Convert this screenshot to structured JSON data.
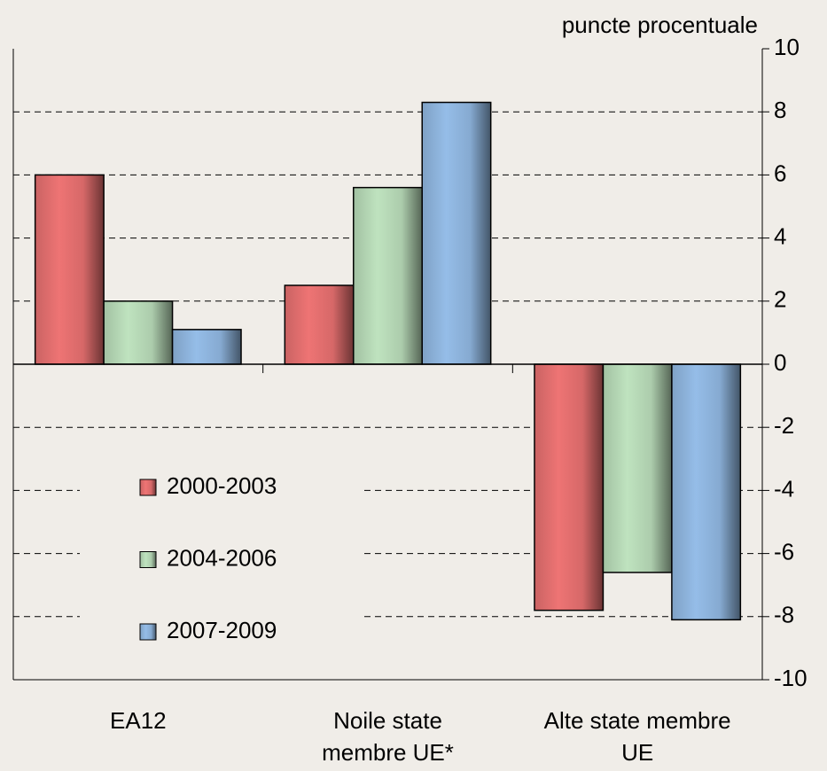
{
  "chart_data": {
    "type": "bar",
    "y_axis_label": "puncte procentuale",
    "categories": [
      "EA12",
      "Noile state membre UE*",
      "Alte state membre UE"
    ],
    "series": [
      {
        "name": "2000-2003",
        "color": "#ee7474",
        "values": [
          6.0,
          2.5,
          -7.8
        ]
      },
      {
        "name": "2004-2006",
        "color": "#bfe3bf",
        "values": [
          2.0,
          5.6,
          -6.6
        ]
      },
      {
        "name": "2007-2009",
        "color": "#95bde8",
        "values": [
          1.1,
          8.3,
          -8.1
        ]
      }
    ],
    "ylim": [
      -10,
      10
    ],
    "yticks": [
      -10,
      -8,
      -6,
      -4,
      -2,
      0,
      2,
      4,
      6,
      8,
      10
    ],
    "grid": true,
    "legend": "lower left"
  }
}
